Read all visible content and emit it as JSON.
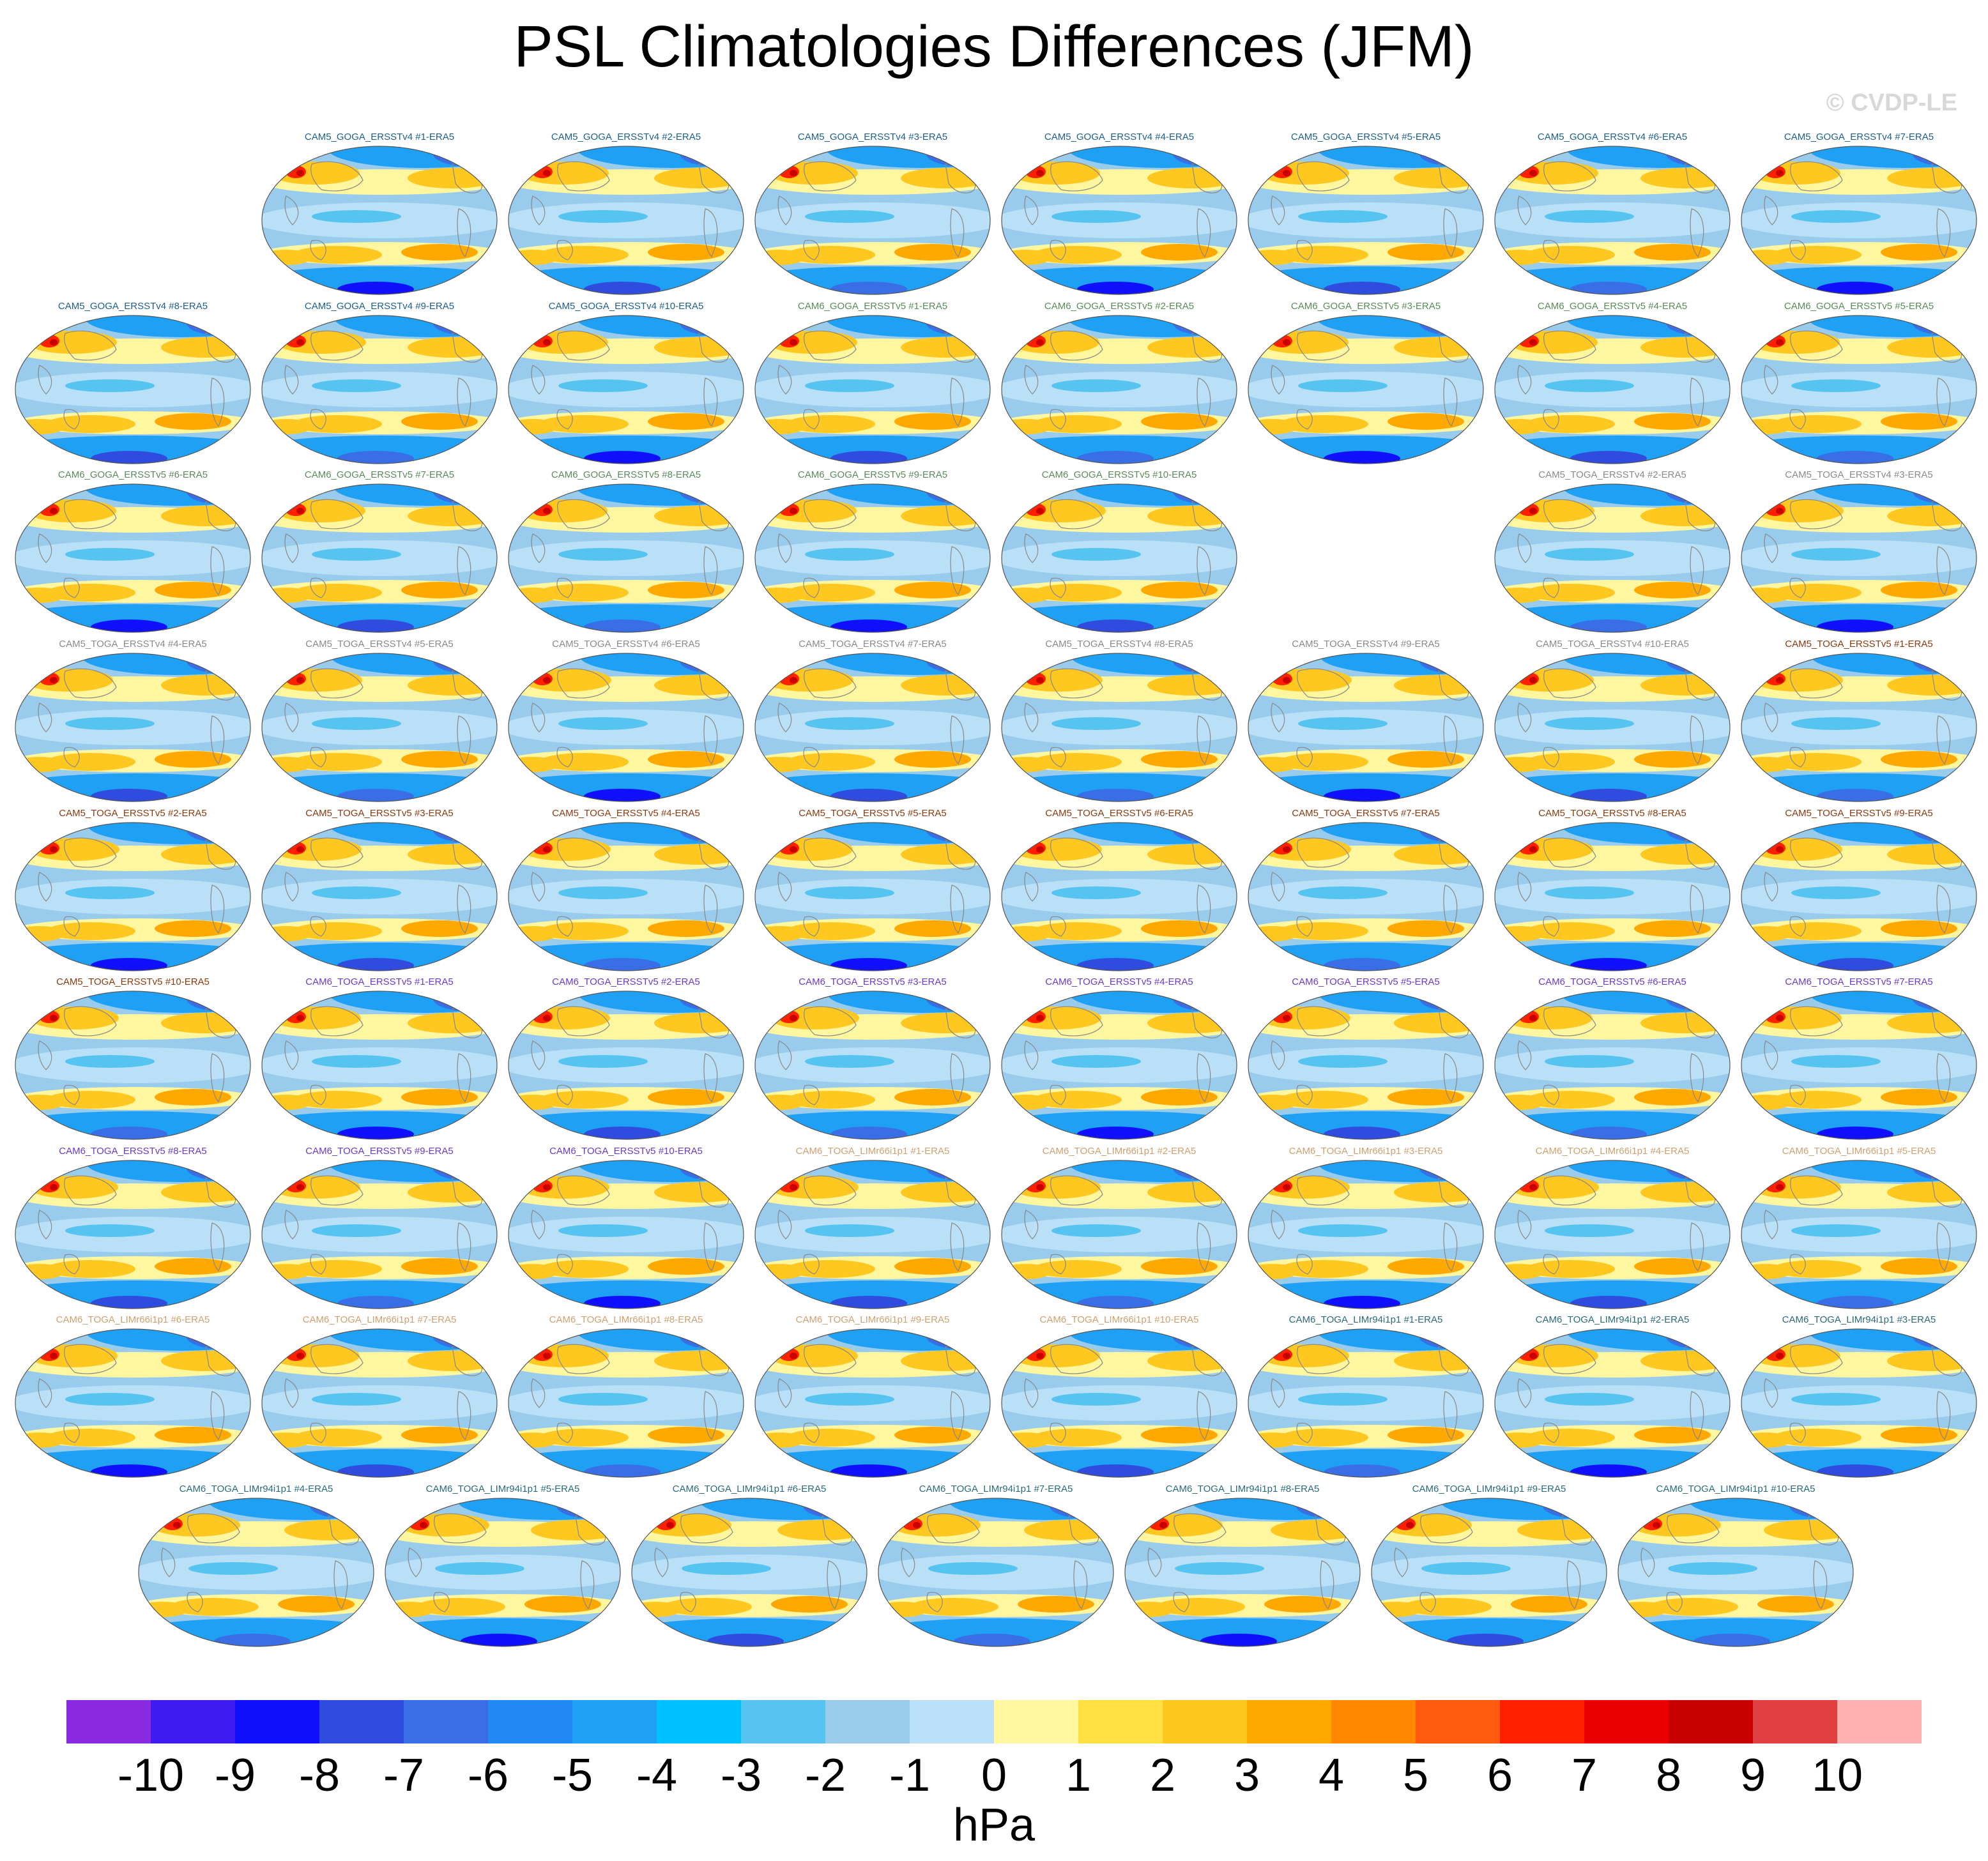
{
  "title": "PSL Climatologies Differences (JFM)",
  "copyright": "© CVDP-LE",
  "colorbar": {
    "units": "hPa",
    "tick_labels": [
      "-10",
      "-9",
      "-8",
      "-7",
      "-6",
      "-5",
      "-4",
      "-3",
      "-2",
      "-1",
      "0",
      "1",
      "2",
      "3",
      "4",
      "5",
      "6",
      "7",
      "8",
      "9",
      "10"
    ],
    "colors": [
      "#8a2be2",
      "#3d1af0",
      "#1010ff",
      "#2f4cdf",
      "#3a6ee6",
      "#2288f5",
      "#1ea0f5",
      "#00c0ff",
      "#55c4f0",
      "#99ccec",
      "#b9e0f6",
      "#fff6a0",
      "#ffe040",
      "#ffc820",
      "#ffa800",
      "#ff8800",
      "#ff5a10",
      "#ff2000",
      "#ec0000",
      "#c80000",
      "#e04040",
      "#ffb0b0"
    ]
  },
  "group_colors": {
    "CAM5_GOGA_ERSSTv4": "#1c5f8c",
    "CAM6_GOGA_ERSSTv5": "#5a8a5a",
    "CAM5_TOGA_ERSSTv4": "#8a8a8a",
    "CAM5_TOGA_ERSSTv5": "#8a3a10",
    "CAM6_TOGA_ERSSTv5": "#6a3acc",
    "CAM6_TOGA_LIMr66i1p1": "#d0a070",
    "CAM6_TOGA_LIMr94i1p1": "#2a6a7a"
  },
  "panels": [
    {
      "label": "CAM5_GOGA_ERSSTv4 #1-ERA5",
      "group": "CAM5_GOGA_ERSSTv4"
    },
    {
      "label": "CAM5_GOGA_ERSSTv4 #2-ERA5",
      "group": "CAM5_GOGA_ERSSTv4"
    },
    {
      "label": "CAM5_GOGA_ERSSTv4 #3-ERA5",
      "group": "CAM5_GOGA_ERSSTv4"
    },
    {
      "label": "CAM5_GOGA_ERSSTv4 #4-ERA5",
      "group": "CAM5_GOGA_ERSSTv4"
    },
    {
      "label": "CAM5_GOGA_ERSSTv4 #5-ERA5",
      "group": "CAM5_GOGA_ERSSTv4"
    },
    {
      "label": "CAM5_GOGA_ERSSTv4 #6-ERA5",
      "group": "CAM5_GOGA_ERSSTv4"
    },
    {
      "label": "CAM5_GOGA_ERSSTv4 #7-ERA5",
      "group": "CAM5_GOGA_ERSSTv4"
    },
    {
      "label": "CAM5_GOGA_ERSSTv4 #8-ERA5",
      "group": "CAM5_GOGA_ERSSTv4"
    },
    {
      "label": "CAM5_GOGA_ERSSTv4 #9-ERA5",
      "group": "CAM5_GOGA_ERSSTv4"
    },
    {
      "label": "CAM5_GOGA_ERSSTv4 #10-ERA5",
      "group": "CAM5_GOGA_ERSSTv4"
    },
    {
      "label": "CAM6_GOGA_ERSSTv5 #1-ERA5",
      "group": "CAM6_GOGA_ERSSTv5"
    },
    {
      "label": "CAM6_GOGA_ERSSTv5 #2-ERA5",
      "group": "CAM6_GOGA_ERSSTv5"
    },
    {
      "label": "CAM6_GOGA_ERSSTv5 #3-ERA5",
      "group": "CAM6_GOGA_ERSSTv5"
    },
    {
      "label": "CAM6_GOGA_ERSSTv5 #4-ERA5",
      "group": "CAM6_GOGA_ERSSTv5"
    },
    {
      "label": "CAM6_GOGA_ERSSTv5 #5-ERA5",
      "group": "CAM6_GOGA_ERSSTv5"
    },
    {
      "label": "CAM6_GOGA_ERSSTv5 #6-ERA5",
      "group": "CAM6_GOGA_ERSSTv5"
    },
    {
      "label": "CAM6_GOGA_ERSSTv5 #7-ERA5",
      "group": "CAM6_GOGA_ERSSTv5"
    },
    {
      "label": "CAM6_GOGA_ERSSTv5 #8-ERA5",
      "group": "CAM6_GOGA_ERSSTv5"
    },
    {
      "label": "CAM6_GOGA_ERSSTv5 #9-ERA5",
      "group": "CAM6_GOGA_ERSSTv5"
    },
    {
      "label": "CAM6_GOGA_ERSSTv5 #10-ERA5",
      "group": "CAM6_GOGA_ERSSTv5"
    },
    {
      "label": "CAM5_TOGA_ERSSTv4 #2-ERA5",
      "group": "CAM5_TOGA_ERSSTv4"
    },
    {
      "label": "CAM5_TOGA_ERSSTv4 #3-ERA5",
      "group": "CAM5_TOGA_ERSSTv4"
    },
    {
      "label": "CAM5_TOGA_ERSSTv4 #4-ERA5",
      "group": "CAM5_TOGA_ERSSTv4"
    },
    {
      "label": "CAM5_TOGA_ERSSTv4 #5-ERA5",
      "group": "CAM5_TOGA_ERSSTv4"
    },
    {
      "label": "CAM5_TOGA_ERSSTv4 #6-ERA5",
      "group": "CAM5_TOGA_ERSSTv4"
    },
    {
      "label": "CAM5_TOGA_ERSSTv4 #7-ERA5",
      "group": "CAM5_TOGA_ERSSTv4"
    },
    {
      "label": "CAM5_TOGA_ERSSTv4 #8-ERA5",
      "group": "CAM5_TOGA_ERSSTv4"
    },
    {
      "label": "CAM5_TOGA_ERSSTv4 #9-ERA5",
      "group": "CAM5_TOGA_ERSSTv4"
    },
    {
      "label": "CAM5_TOGA_ERSSTv4 #10-ERA5",
      "group": "CAM5_TOGA_ERSSTv4"
    },
    {
      "label": "CAM5_TOGA_ERSSTv5 #1-ERA5",
      "group": "CAM5_TOGA_ERSSTv5"
    },
    {
      "label": "CAM5_TOGA_ERSSTv5 #2-ERA5",
      "group": "CAM5_TOGA_ERSSTv5"
    },
    {
      "label": "CAM5_TOGA_ERSSTv5 #3-ERA5",
      "group": "CAM5_TOGA_ERSSTv5"
    },
    {
      "label": "CAM5_TOGA_ERSSTv5 #4-ERA5",
      "group": "CAM5_TOGA_ERSSTv5"
    },
    {
      "label": "CAM5_TOGA_ERSSTv5 #5-ERA5",
      "group": "CAM5_TOGA_ERSSTv5"
    },
    {
      "label": "CAM5_TOGA_ERSSTv5 #6-ERA5",
      "group": "CAM5_TOGA_ERSSTv5"
    },
    {
      "label": "CAM5_TOGA_ERSSTv5 #7-ERA5",
      "group": "CAM5_TOGA_ERSSTv5"
    },
    {
      "label": "CAM5_TOGA_ERSSTv5 #8-ERA5",
      "group": "CAM5_TOGA_ERSSTv5"
    },
    {
      "label": "CAM5_TOGA_ERSSTv5 #9-ERA5",
      "group": "CAM5_TOGA_ERSSTv5"
    },
    {
      "label": "CAM5_TOGA_ERSSTv5 #10-ERA5",
      "group": "CAM5_TOGA_ERSSTv5"
    },
    {
      "label": "CAM6_TOGA_ERSSTv5 #1-ERA5",
      "group": "CAM6_TOGA_ERSSTv5"
    },
    {
      "label": "CAM6_TOGA_ERSSTv5 #2-ERA5",
      "group": "CAM6_TOGA_ERSSTv5"
    },
    {
      "label": "CAM6_TOGA_ERSSTv5 #3-ERA5",
      "group": "CAM6_TOGA_ERSSTv5"
    },
    {
      "label": "CAM6_TOGA_ERSSTv5 #4-ERA5",
      "group": "CAM6_TOGA_ERSSTv5"
    },
    {
      "label": "CAM6_TOGA_ERSSTv5 #5-ERA5",
      "group": "CAM6_TOGA_ERSSTv5"
    },
    {
      "label": "CAM6_TOGA_ERSSTv5 #6-ERA5",
      "group": "CAM6_TOGA_ERSSTv5"
    },
    {
      "label": "CAM6_TOGA_ERSSTv5 #7-ERA5",
      "group": "CAM6_TOGA_ERSSTv5"
    },
    {
      "label": "CAM6_TOGA_ERSSTv5 #8-ERA5",
      "group": "CAM6_TOGA_ERSSTv5"
    },
    {
      "label": "CAM6_TOGA_ERSSTv5 #9-ERA5",
      "group": "CAM6_TOGA_ERSSTv5"
    },
    {
      "label": "CAM6_TOGA_ERSSTv5 #10-ERA5",
      "group": "CAM6_TOGA_ERSSTv5"
    },
    {
      "label": "CAM6_TOGA_LIMr66i1p1 #1-ERA5",
      "group": "CAM6_TOGA_LIMr66i1p1"
    },
    {
      "label": "CAM6_TOGA_LIMr66i1p1 #2-ERA5",
      "group": "CAM6_TOGA_LIMr66i1p1"
    },
    {
      "label": "CAM6_TOGA_LIMr66i1p1 #3-ERA5",
      "group": "CAM6_TOGA_LIMr66i1p1"
    },
    {
      "label": "CAM6_TOGA_LIMr66i1p1 #4-ERA5",
      "group": "CAM6_TOGA_LIMr66i1p1"
    },
    {
      "label": "CAM6_TOGA_LIMr66i1p1 #5-ERA5",
      "group": "CAM6_TOGA_LIMr66i1p1"
    },
    {
      "label": "CAM6_TOGA_LIMr66i1p1 #6-ERA5",
      "group": "CAM6_TOGA_LIMr66i1p1"
    },
    {
      "label": "CAM6_TOGA_LIMr66i1p1 #7-ERA5",
      "group": "CAM6_TOGA_LIMr66i1p1"
    },
    {
      "label": "CAM6_TOGA_LIMr66i1p1 #8-ERA5",
      "group": "CAM6_TOGA_LIMr66i1p1"
    },
    {
      "label": "CAM6_TOGA_LIMr66i1p1 #9-ERA5",
      "group": "CAM6_TOGA_LIMr66i1p1"
    },
    {
      "label": "CAM6_TOGA_LIMr66i1p1 #10-ERA5",
      "group": "CAM6_TOGA_LIMr66i1p1"
    },
    {
      "label": "CAM6_TOGA_LIMr94i1p1 #1-ERA5",
      "group": "CAM6_TOGA_LIMr94i1p1"
    },
    {
      "label": "CAM6_TOGA_LIMr94i1p1 #2-ERA5",
      "group": "CAM6_TOGA_LIMr94i1p1"
    },
    {
      "label": "CAM6_TOGA_LIMr94i1p1 #3-ERA5",
      "group": "CAM6_TOGA_LIMr94i1p1"
    },
    {
      "label": "CAM6_TOGA_LIMr94i1p1 #4-ERA5",
      "group": "CAM6_TOGA_LIMr94i1p1"
    },
    {
      "label": "CAM6_TOGA_LIMr94i1p1 #5-ERA5",
      "group": "CAM6_TOGA_LIMr94i1p1"
    },
    {
      "label": "CAM6_TOGA_LIMr94i1p1 #6-ERA5",
      "group": "CAM6_TOGA_LIMr94i1p1"
    },
    {
      "label": "CAM6_TOGA_LIMr94i1p1 #7-ERA5",
      "group": "CAM6_TOGA_LIMr94i1p1"
    },
    {
      "label": "CAM6_TOGA_LIMr94i1p1 #8-ERA5",
      "group": "CAM6_TOGA_LIMr94i1p1"
    },
    {
      "label": "CAM6_TOGA_LIMr94i1p1 #9-ERA5",
      "group": "CAM6_TOGA_LIMr94i1p1"
    },
    {
      "label": "CAM6_TOGA_LIMr94i1p1 #10-ERA5",
      "group": "CAM6_TOGA_LIMr94i1p1"
    }
  ]
}
